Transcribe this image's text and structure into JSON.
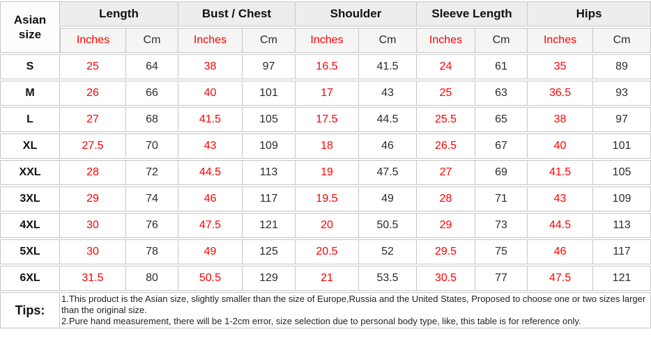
{
  "chart_data": {
    "type": "table",
    "corner_header": "Asian size",
    "column_groups": [
      "Length",
      "Bust / Chest",
      "Shoulder",
      "Sleeve Length",
      "Hips"
    ],
    "unit_columns": [
      "Inches",
      "Cm"
    ],
    "rows": [
      {
        "size": "S",
        "values": [
          25,
          64,
          38,
          97,
          16.5,
          41.5,
          24,
          61,
          35,
          89
        ]
      },
      {
        "size": "M",
        "values": [
          26,
          66,
          40,
          101,
          17,
          43,
          25,
          63,
          36.5,
          93
        ]
      },
      {
        "size": "L",
        "values": [
          27,
          68,
          41.5,
          105,
          17.5,
          44.5,
          25.5,
          65,
          38,
          97
        ]
      },
      {
        "size": "XL",
        "values": [
          27.5,
          70,
          43,
          109,
          18,
          46,
          26.5,
          67,
          40,
          101
        ]
      },
      {
        "size": "XXL",
        "values": [
          28,
          72,
          44.5,
          113,
          19,
          47.5,
          27,
          69,
          41.5,
          105
        ]
      },
      {
        "size": "3XL",
        "values": [
          29,
          74,
          46,
          117,
          19.5,
          49,
          28,
          71,
          43,
          109
        ]
      },
      {
        "size": "4XL",
        "values": [
          30,
          76,
          47.5,
          121,
          20,
          50.5,
          29,
          73,
          44.5,
          113
        ]
      },
      {
        "size": "5XL",
        "values": [
          30,
          78,
          49,
          125,
          20.5,
          52,
          29.5,
          75,
          46,
          117
        ]
      },
      {
        "size": "6XL",
        "values": [
          31.5,
          80,
          50.5,
          129,
          21,
          53.5,
          30.5,
          77,
          47.5,
          121
        ]
      }
    ],
    "notes": [
      "1.This product is the Asian size, slightly smaller than the size of Europe,Russia and the United States, Proposed to choose one or two sizes larger than the original size.",
      "2.Pure hand measurement, there will be 1-2cm error, size selection due to personal body type, like, this table is for reference only."
    ]
  },
  "ui": {
    "tips_label": "Tips:",
    "colors": {
      "inches_text": "#ff0000",
      "cm_text": "#2b2b2b",
      "group_header_bg": "#ededed",
      "unit_header_bg": "#f5f5f5",
      "border": "#c6c6c6"
    }
  }
}
